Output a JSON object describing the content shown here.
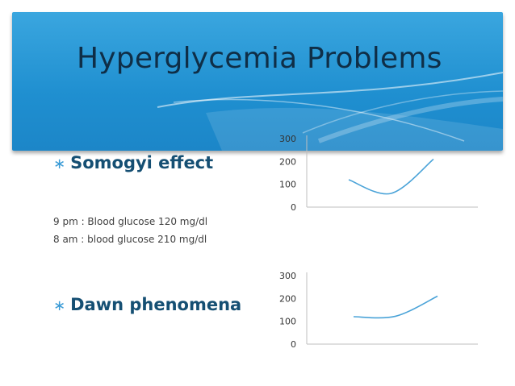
{
  "slide": {
    "title": "Hyperglycemia Problems",
    "bullets": [
      {
        "label": "Somogyi effect"
      },
      {
        "label": "Dawn phenomena"
      }
    ],
    "notes": [
      "9 pm : Blood glucose 120 mg/dl",
      "8 am : blood glucose 210 mg/dl"
    ],
    "bullet_symbol": "∗"
  },
  "colors": {
    "banner": "#2a9ad8",
    "title": "#0f2e47",
    "bullet_text": "#154f73",
    "series_line": "#4aa3d8"
  },
  "chart_data": [
    {
      "type": "line",
      "title": "",
      "xlabel": "",
      "ylabel": "",
      "ylim": [
        0,
        300
      ],
      "yticks": [
        0,
        100,
        200,
        300
      ],
      "grid": false,
      "x": [
        0,
        1,
        2
      ],
      "series": [
        {
          "values": [
            120,
            60,
            210
          ]
        }
      ]
    },
    {
      "type": "line",
      "title": "",
      "xlabel": "",
      "ylabel": "",
      "ylim": [
        0,
        300
      ],
      "yticks": [
        0,
        100,
        200,
        300
      ],
      "grid": false,
      "x": [
        0,
        1,
        2
      ],
      "series": [
        {
          "values": [
            120,
            122,
            210
          ]
        }
      ]
    }
  ]
}
